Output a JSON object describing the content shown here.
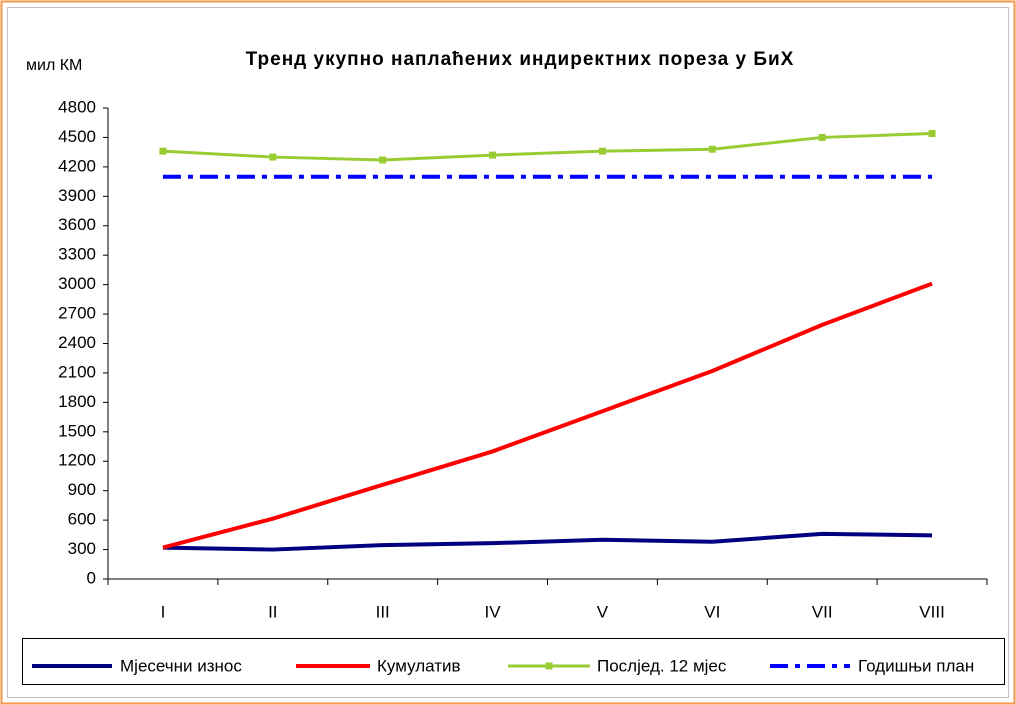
{
  "chart_data": {
    "type": "line",
    "title": "Тренд укупно наплаћених индиректних пореза у БиХ",
    "y_label": "мил КМ",
    "categories": [
      "I",
      "II",
      "III",
      "IV",
      "V",
      "VI",
      "VII",
      "VIII"
    ],
    "series": [
      {
        "name": "Мјесечни износ",
        "color": "#000080",
        "values": [
          320,
          300,
          345,
          365,
          400,
          380,
          460,
          445
        ]
      },
      {
        "name": "Кумулатив",
        "color": "#ff0000",
        "values": [
          320,
          615,
          960,
          1300,
          1710,
          2120,
          2590,
          3010
        ]
      },
      {
        "name": "Послјед. 12 мјес",
        "color": "#99cc33",
        "values": [
          4360,
          4300,
          4270,
          4320,
          4360,
          4380,
          4500,
          4540
        ]
      },
      {
        "name": "Годишњи план",
        "color": "#0000ff",
        "values": [
          4100,
          4100,
          4100,
          4100,
          4100,
          4100,
          4100,
          4100
        ]
      }
    ],
    "ylim": [
      0,
      4800
    ],
    "yticks": [
      0,
      300,
      600,
      900,
      1200,
      1500,
      1800,
      2100,
      2400,
      2700,
      3000,
      3300,
      3600,
      3900,
      4200,
      4500,
      4800
    ],
    "grid": false,
    "legend": "bottom"
  }
}
